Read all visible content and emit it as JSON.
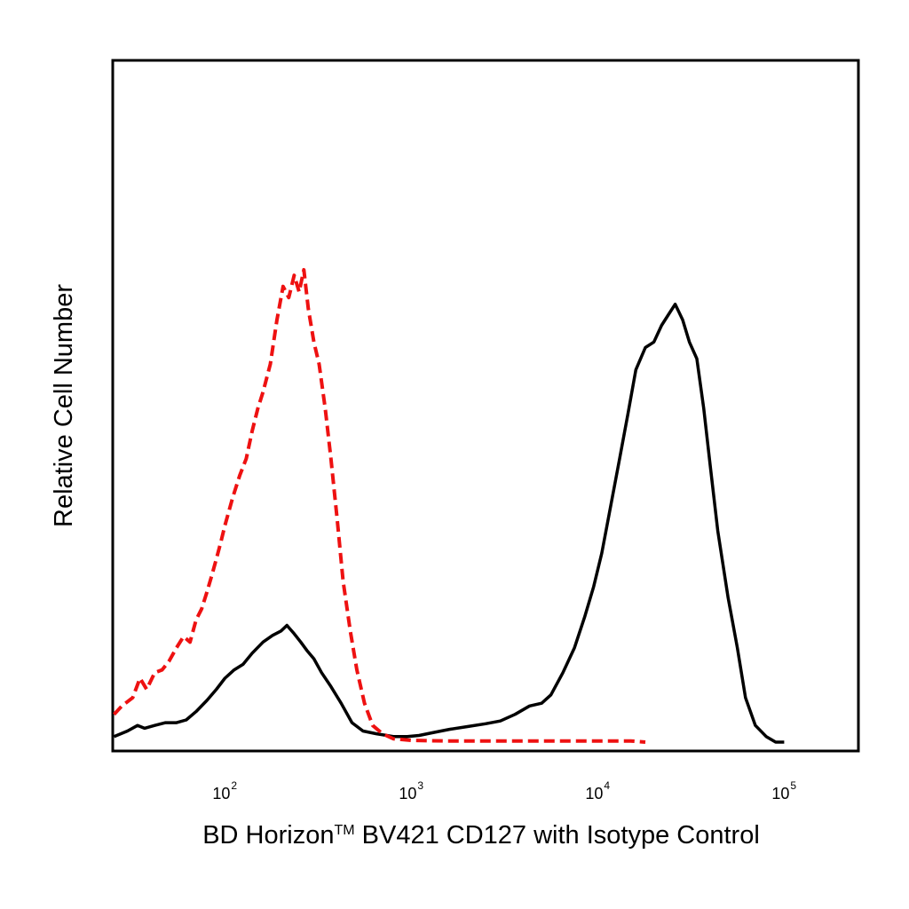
{
  "chart_data": {
    "type": "line",
    "title": "",
    "xlabel_main": "BD Horizon",
    "xlabel_tm": "TM",
    "xlabel_rest": " BV421 CD127 with Isotype Control",
    "ylabel": "Relative Cell Number",
    "x_scale": "log",
    "xlim": [
      25,
      250000
    ],
    "ylim": [
      0,
      100
    ],
    "grid": false,
    "legend": "none",
    "x_ticks": [
      {
        "base": "10",
        "exp": "2",
        "value": 100
      },
      {
        "base": "10",
        "exp": "3",
        "value": 1000
      },
      {
        "base": "10",
        "exp": "4",
        "value": 10000
      },
      {
        "base": "10",
        "exp": "5",
        "value": 100000
      }
    ],
    "series": [
      {
        "color": "#000000",
        "style": "solid",
        "points": [
          [
            25,
            1
          ],
          [
            30,
            2
          ],
          [
            34,
            3
          ],
          [
            37,
            2.5
          ],
          [
            42,
            3
          ],
          [
            48,
            3.5
          ],
          [
            55,
            3.5
          ],
          [
            62,
            4
          ],
          [
            70,
            5.5
          ],
          [
            80,
            7.5
          ],
          [
            90,
            9.5
          ],
          [
            100,
            11.5
          ],
          [
            112,
            13
          ],
          [
            125,
            14
          ],
          [
            140,
            16
          ],
          [
            160,
            18
          ],
          [
            180,
            19.2
          ],
          [
            200,
            20
          ],
          [
            215,
            21
          ],
          [
            235,
            19.5
          ],
          [
            255,
            18
          ],
          [
            275,
            16.5
          ],
          [
            300,
            15
          ],
          [
            330,
            12.5
          ],
          [
            370,
            10
          ],
          [
            420,
            7
          ],
          [
            480,
            3.5
          ],
          [
            550,
            2
          ],
          [
            650,
            1.5
          ],
          [
            800,
            1
          ],
          [
            950,
            1
          ],
          [
            1100,
            1.2
          ],
          [
            1300,
            1.7
          ],
          [
            1600,
            2.3
          ],
          [
            2000,
            2.8
          ],
          [
            2500,
            3.3
          ],
          [
            3000,
            3.8
          ],
          [
            3600,
            5
          ],
          [
            4300,
            6.5
          ],
          [
            5000,
            7
          ],
          [
            5600,
            8.5
          ],
          [
            6500,
            12.5
          ],
          [
            7500,
            17
          ],
          [
            8500,
            22.5
          ],
          [
            9500,
            28
          ],
          [
            10500,
            34
          ],
          [
            11500,
            41
          ],
          [
            13000,
            50.5
          ],
          [
            14500,
            59
          ],
          [
            16000,
            67
          ],
          [
            18000,
            71
          ],
          [
            20000,
            72
          ],
          [
            22000,
            75
          ],
          [
            24000,
            77
          ],
          [
            26000,
            78.8
          ],
          [
            28500,
            76
          ],
          [
            31000,
            72
          ],
          [
            34000,
            69
          ],
          [
            37000,
            60
          ],
          [
            40000,
            50
          ],
          [
            44000,
            38
          ],
          [
            50000,
            26
          ],
          [
            56000,
            17
          ],
          [
            62000,
            8
          ],
          [
            70000,
            3
          ],
          [
            80000,
            1
          ],
          [
            90000,
            0
          ],
          [
            100000,
            0
          ]
        ]
      },
      {
        "color": "#ee1111",
        "style": "dashed",
        "points": [
          [
            25,
            5
          ],
          [
            28,
            6.5
          ],
          [
            32,
            8
          ],
          [
            35,
            11.5
          ],
          [
            38,
            9.5
          ],
          [
            42,
            12.5
          ],
          [
            46,
            13
          ],
          [
            50,
            14.5
          ],
          [
            55,
            17
          ],
          [
            60,
            19
          ],
          [
            65,
            18
          ],
          [
            70,
            22
          ],
          [
            75,
            24
          ],
          [
            80,
            27
          ],
          [
            85,
            30
          ],
          [
            90,
            33
          ],
          [
            95,
            36
          ],
          [
            100,
            39
          ],
          [
            110,
            44
          ],
          [
            120,
            48
          ],
          [
            130,
            51
          ],
          [
            140,
            56
          ],
          [
            150,
            60
          ],
          [
            160,
            63
          ],
          [
            175,
            68
          ],
          [
            190,
            76
          ],
          [
            205,
            82
          ],
          [
            220,
            80
          ],
          [
            235,
            84
          ],
          [
            250,
            81
          ],
          [
            265,
            85
          ],
          [
            280,
            78
          ],
          [
            300,
            72
          ],
          [
            320,
            68
          ],
          [
            345,
            60
          ],
          [
            370,
            51
          ],
          [
            400,
            40
          ],
          [
            430,
            29
          ],
          [
            470,
            20
          ],
          [
            510,
            13
          ],
          [
            560,
            7
          ],
          [
            620,
            3
          ],
          [
            700,
            1.5
          ],
          [
            800,
            0.6
          ],
          [
            1000,
            0.3
          ],
          [
            1500,
            0.2
          ],
          [
            3000,
            0.2
          ],
          [
            6000,
            0.2
          ],
          [
            15000,
            0.2
          ],
          [
            18000,
            0
          ]
        ]
      }
    ]
  }
}
